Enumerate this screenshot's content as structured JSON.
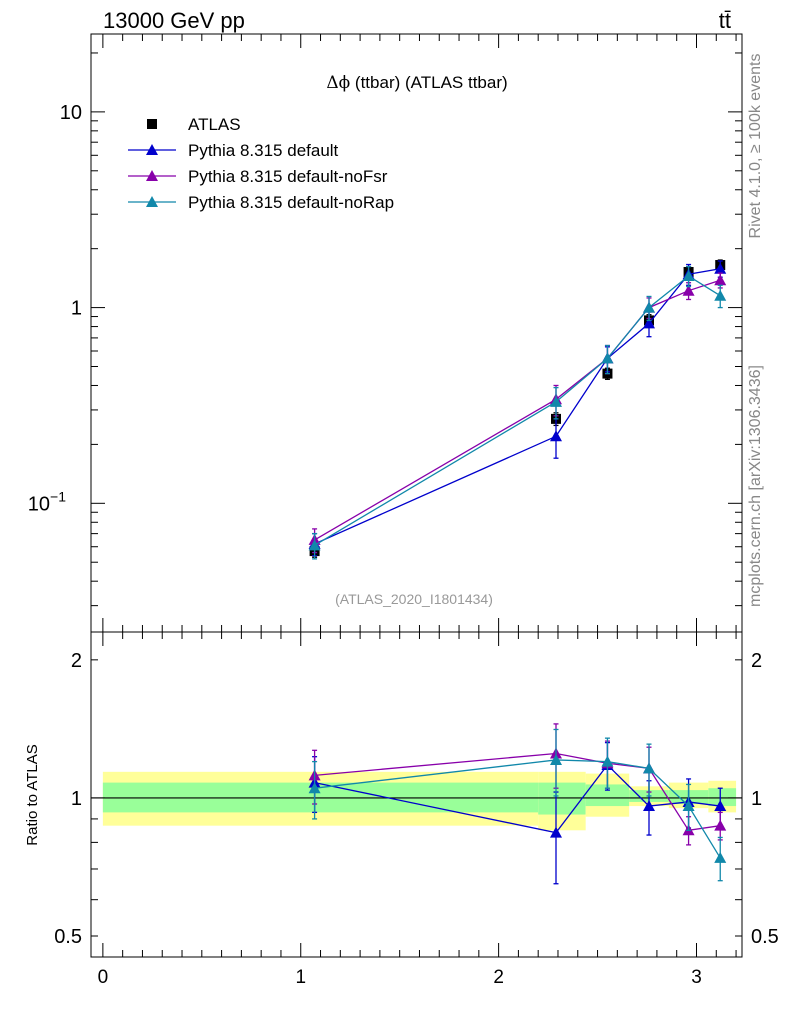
{
  "header": {
    "energy_label": "13000 GeV pp",
    "process_label": "tt̄"
  },
  "side": {
    "rivet_label": "Rivet 4.1.0, ≥ 100k events",
    "mcplots_label": "mcplots.cern.ch [arXiv:1306.3436]"
  },
  "colors": {
    "atlas": "#000000",
    "default": "#0000cc",
    "noFsr": "#8800aa",
    "noRap": "#1188aa",
    "band_inner": "#99ff99",
    "band_outer": "#ffff99"
  },
  "chart_data": [
    {
      "type": "scatter",
      "title_parts": [
        "Δϕ",
        " (ttbar) (ATLAS ttbar)"
      ],
      "watermark": "(ATLAS_2020_I1801434)",
      "yscale": "log",
      "xlim": [
        -0.06,
        3.23
      ],
      "ylim": [
        0.022,
        25
      ],
      "y_ticks": [
        {
          "value": 10,
          "label": "10"
        },
        {
          "value": 1,
          "label": "1"
        },
        {
          "value": 0.1,
          "label": "10",
          "sup": "−1"
        }
      ],
      "legend": [
        {
          "name": "ATLAS",
          "marker": "square",
          "color_key": "atlas"
        },
        {
          "name": "Pythia 8.315 default",
          "marker": "triangle",
          "color_key": "default"
        },
        {
          "name": "Pythia 8.315 default-noFsr",
          "marker": "triangle",
          "color_key": "noFsr"
        },
        {
          "name": "Pythia 8.315 default-noRap",
          "marker": "triangle",
          "color_key": "noRap"
        }
      ],
      "x": [
        1.07,
        2.29,
        2.55,
        2.76,
        2.96,
        3.12
      ],
      "data": {
        "name": "ATLAS",
        "values": [
          0.057,
          0.27,
          0.46,
          0.86,
          1.52,
          1.65
        ],
        "err": [
          0.004,
          0.02,
          0.03,
          0.06,
          0.1,
          0.1
        ]
      },
      "series": [
        {
          "name": "Pythia 8.315 default",
          "color_key": "default",
          "values": [
            0.062,
            0.22,
            0.55,
            0.83,
            1.48,
            1.58
          ],
          "err": [
            0.008,
            0.05,
            0.08,
            0.12,
            0.18,
            0.15
          ]
        },
        {
          "name": "Pythia 8.315 default-noFsr",
          "color_key": "noFsr",
          "values": [
            0.065,
            0.34,
            0.55,
            1.0,
            1.22,
            1.38
          ],
          "err": [
            0.009,
            0.06,
            0.09,
            0.12,
            0.12,
            0.12
          ]
        },
        {
          "name": "Pythia 8.315 default-noRap",
          "color_key": "noRap",
          "values": [
            0.061,
            0.33,
            0.55,
            1.0,
            1.45,
            1.15
          ],
          "err": [
            0.009,
            0.06,
            0.09,
            0.14,
            0.17,
            0.15
          ]
        }
      ]
    },
    {
      "type": "scatter",
      "ylabel": "Ratio to ATLAS",
      "yscale": "log",
      "xlim": [
        -0.06,
        3.23
      ],
      "ylim": [
        0.45,
        2.3
      ],
      "y_ticks": [
        {
          "value": 2,
          "label": "2"
        },
        {
          "value": 1,
          "label": "1"
        },
        {
          "value": 0.5,
          "label": "0.5"
        }
      ],
      "x_ticks": [
        {
          "value": 0,
          "label": "0"
        },
        {
          "value": 1,
          "label": "1"
        },
        {
          "value": 2,
          "label": "2"
        },
        {
          "value": 3,
          "label": "3"
        }
      ],
      "bands": {
        "edges": [
          0.0,
          2.2,
          2.44,
          2.66,
          2.86,
          3.06,
          3.2
        ],
        "inner": [
          [
            0.93,
            1.08
          ],
          [
            0.92,
            1.08
          ],
          [
            0.96,
            1.07
          ],
          [
            0.98,
            1.04
          ],
          [
            0.97,
            1.04
          ],
          [
            0.96,
            1.05
          ]
        ],
        "outer": [
          [
            0.87,
            1.14
          ],
          [
            0.85,
            1.14
          ],
          [
            0.91,
            1.13
          ],
          [
            0.96,
            1.06
          ],
          [
            0.95,
            1.08
          ],
          [
            0.93,
            1.09
          ]
        ]
      },
      "x": [
        1.07,
        2.29,
        2.55,
        2.76,
        2.96,
        3.12
      ],
      "series": [
        {
          "name": "Pythia 8.315 default",
          "color_key": "default",
          "values": [
            1.08,
            0.84,
            1.18,
            0.96,
            0.98,
            0.96
          ],
          "err": [
            0.15,
            0.19,
            0.14,
            0.13,
            0.12,
            0.09
          ]
        },
        {
          "name": "Pythia 8.315 default-noFsr",
          "color_key": "noFsr",
          "values": [
            1.12,
            1.25,
            1.19,
            1.16,
            0.85,
            0.87
          ],
          "err": [
            0.15,
            0.2,
            0.14,
            0.13,
            0.06,
            0.06
          ]
        },
        {
          "name": "Pythia 8.315 default-noRap",
          "color_key": "noRap",
          "values": [
            1.05,
            1.21,
            1.2,
            1.16,
            0.96,
            0.74
          ],
          "err": [
            0.15,
            0.2,
            0.15,
            0.15,
            0.11,
            0.08
          ]
        }
      ]
    }
  ]
}
